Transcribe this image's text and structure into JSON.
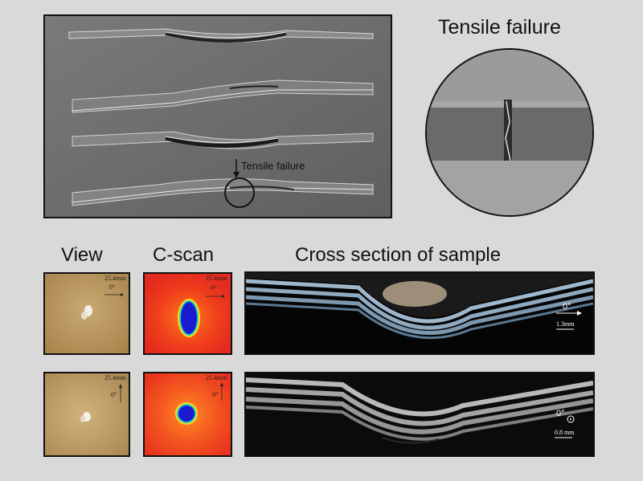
{
  "top_panel": {
    "annotation": "Tensile failure"
  },
  "zoom_panel": {
    "title": "Tensile failure"
  },
  "columns": {
    "view": "View",
    "cscan": "C-scan",
    "cross_section": "Cross section of sample"
  },
  "row1": {
    "view_scale": "25.4mm",
    "view_angle": "0°",
    "cscan_scale": "25.4mm",
    "cscan_angle": "0°",
    "section_angle": "0°",
    "section_scale": "1.3mm"
  },
  "row2": {
    "view_scale": "25.4mm",
    "view_angle": "0°",
    "cscan_scale": "25.4mm",
    "cscan_angle": "0°",
    "section_angle": "0°",
    "section_scale": "0.8 mm"
  },
  "colors": {
    "background": "#d9d9d9",
    "photo_grey": "#6f6f6f",
    "view_tan": "#b9955d",
    "cscan_red": "#e8381e",
    "cscan_core": "#1a1ad0"
  }
}
